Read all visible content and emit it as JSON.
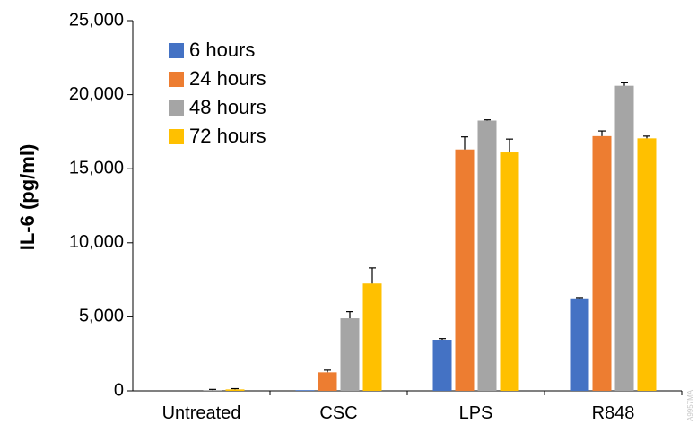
{
  "chart_data": {
    "type": "bar",
    "title": "",
    "xlabel": "",
    "ylabel": "IL-6 (pg/ml)",
    "ylim": [
      0,
      25000
    ],
    "yticks": [
      0,
      5000,
      10000,
      15000,
      20000,
      25000
    ],
    "ytick_labels": [
      "0",
      "5,000",
      "10,000",
      "15,000",
      "20,000",
      "25,000"
    ],
    "grid": false,
    "legend_position": "top-left",
    "categories": [
      "Untreated",
      "CSC",
      "LPS",
      "R848"
    ],
    "series": [
      {
        "name": "6 hours",
        "color": "#4472c4",
        "values": [
          0,
          50,
          3450,
          6250
        ],
        "errors": [
          0,
          0,
          80,
          50
        ]
      },
      {
        "name": "24 hours",
        "color": "#ed7d31",
        "values": [
          0,
          1250,
          16300,
          17200
        ],
        "errors": [
          0,
          150,
          850,
          350
        ]
      },
      {
        "name": "48 hours",
        "color": "#a5a5a5",
        "values": [
          50,
          4900,
          18250,
          20600
        ],
        "errors": [
          50,
          450,
          50,
          200
        ]
      },
      {
        "name": "72 hours",
        "color": "#ffc000",
        "values": [
          100,
          7250,
          16100,
          17050
        ],
        "errors": [
          50,
          1050,
          900,
          150
        ]
      }
    ],
    "watermark": "A9957MA"
  }
}
